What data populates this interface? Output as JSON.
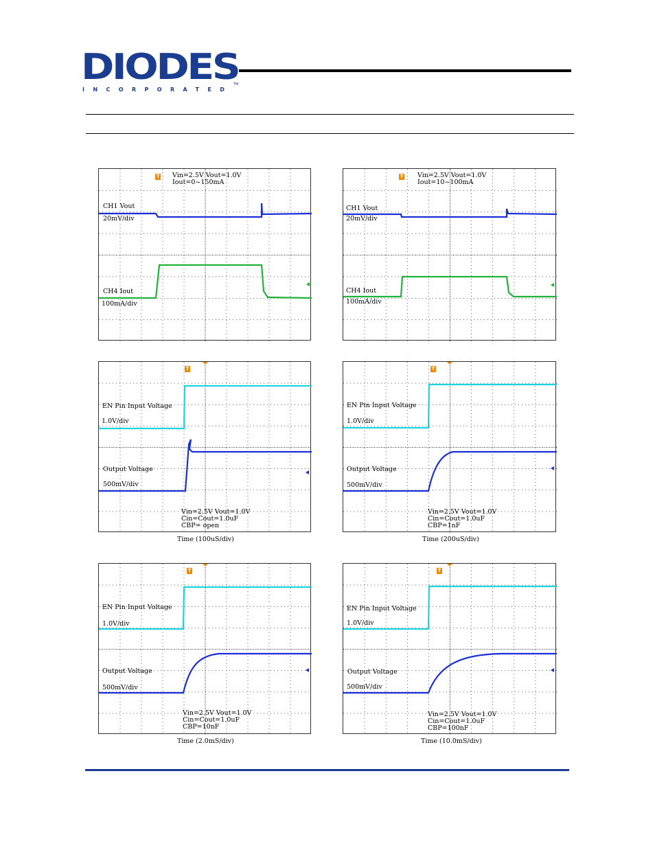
{
  "logo": {
    "word": "DIODES",
    "sub": "INCORPORATED",
    "tm": "TM"
  },
  "scopes": [
    {
      "lines": [
        "Vin=2.5V   Vout=1.0V",
        "Iout=0~150mA"
      ],
      "ch1": "CH1 Vout",
      "ch1_scale": "20mV/div",
      "ch2": "CH4 Iout",
      "ch2_scale": "100mA/div"
    },
    {
      "lines": [
        "Vin=2.5V  Vout=1.0V",
        "Iout=10~100mA"
      ],
      "ch1": "CH1 Vout",
      "ch1_scale": "20mV/div",
      "ch2": "CH4 Iout",
      "ch2_scale": "100mA/div"
    },
    {
      "ch1": "EN Pin Input Voltage",
      "ch1_scale": "1.0V/div",
      "ch2": "Output Voltage",
      "ch2_scale": "500mV/div",
      "lines": [
        "Vin=2.5V  Vout=1.0V",
        "Cin=Cout=1.0uF",
        "CBP= open"
      ],
      "time": "Time (100uS/div)"
    },
    {
      "ch1": "EN Pin Input Voltage",
      "ch1_scale": "1.0V/div",
      "ch2": "Output Voltage",
      "ch2_scale": "500mV/div",
      "lines": [
        "Vin=2.5V  Vout=1.0V",
        "Cin=Cout=1.0uF",
        "CBP=1nF"
      ],
      "time": "Time (200uS/div)"
    },
    {
      "ch1": "EN Pin Input Voltage",
      "ch1_scale": "1.0V/div",
      "ch2": "Output Voltage",
      "ch2_scale": "500mV/div",
      "lines": [
        "Vin=2.5V  Vout=1.0V",
        "Cin=Cout=1.0uF",
        "CBP=10nF"
      ],
      "time": "Time (2.0mS/div)"
    },
    {
      "ch1": "EN Pin Input Voltage",
      "ch1_scale": "1.0V/div",
      "ch2": "Output Voltage",
      "ch2_scale": "500mV/div",
      "lines": [
        "Vin=2.5V  Vout=1.0V",
        "Cin=Cout=1.0uF",
        "CBP=100nF"
      ],
      "time": "Time (10.0mS/div)"
    }
  ],
  "trigger_glyph": "T",
  "colors": {
    "brand": "#1b3d8f",
    "vout": "#1a2fd6",
    "iout": "#1fb33a",
    "en": "#1ed3e0",
    "trigger": "#f08a00"
  }
}
